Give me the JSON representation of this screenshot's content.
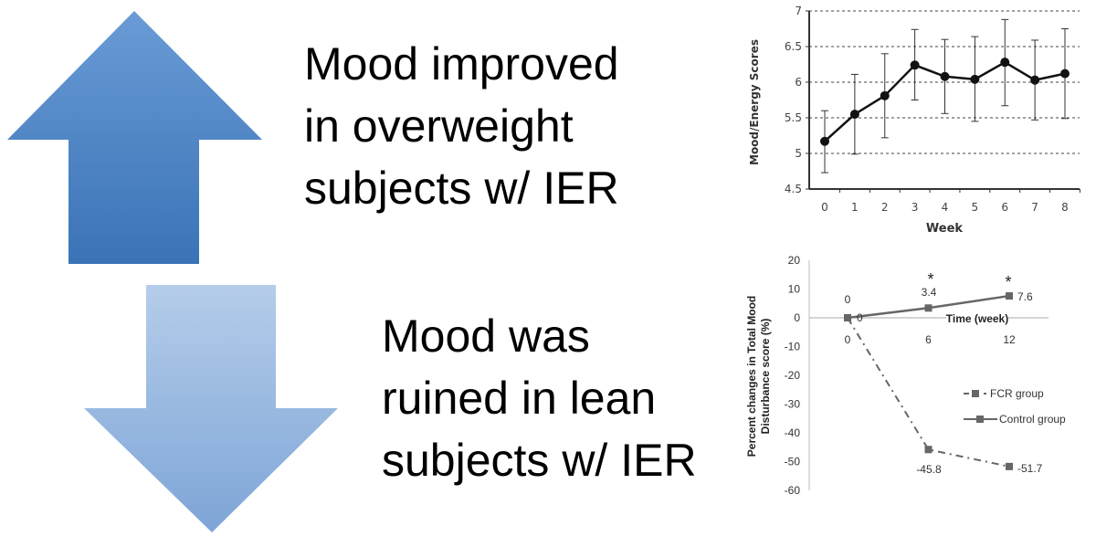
{
  "slide": {
    "text_top": [
      "Mood improved",
      "in overweight",
      "subjects w/ IER"
    ],
    "text_bottom": [
      "Mood was",
      "ruined in lean",
      "subjects w/ IER"
    ],
    "colors": {
      "up_arrow_top": "#6a9bd6",
      "up_arrow_bottom": "#3a73b6",
      "down_arrow_top": "#b5cdea",
      "down_arrow_bottom": "#7ea5d7"
    }
  },
  "chart_data": [
    {
      "type": "line",
      "title": "",
      "xlabel": "Week",
      "ylabel": "Mood/Energy Scores",
      "x": [
        0,
        1,
        2,
        3,
        4,
        5,
        6,
        7,
        8
      ],
      "series": [
        {
          "name": "Mood/Energy",
          "values": [
            5.17,
            5.55,
            5.81,
            6.24,
            6.08,
            6.04,
            6.28,
            6.03,
            6.12
          ],
          "err_low": [
            4.73,
            4.99,
            5.22,
            5.75,
            5.56,
            5.45,
            5.67,
            5.47,
            5.49
          ],
          "err_high": [
            5.6,
            6.11,
            6.4,
            6.74,
            6.6,
            6.64,
            6.88,
            6.59,
            6.75
          ]
        }
      ],
      "ylim": [
        4.5,
        7
      ],
      "yticks": [
        "4.5",
        "5",
        "5.5",
        "6",
        "6.5",
        "7"
      ],
      "xticks": [
        "0",
        "1",
        "2",
        "3",
        "4",
        "5",
        "6",
        "7",
        "8"
      ],
      "grid": true
    },
    {
      "type": "line",
      "title": "",
      "xlabel": "Time (week)",
      "ylabel": "Percent changes in Total Mood Disturbance score (%)",
      "x": [
        0,
        6,
        12
      ],
      "xticks": [
        "0",
        "6",
        "12"
      ],
      "yticks": [
        "20",
        "10",
        "0",
        "-10",
        "-20",
        "-30",
        "-40",
        "-50",
        "-60"
      ],
      "ylim": [
        -60,
        20
      ],
      "series": [
        {
          "name": "FCR group",
          "values": [
            0,
            -45.8,
            -51.7
          ],
          "labels": [
            "0",
            "-45.8",
            "-51.7"
          ],
          "style": "dash-dot"
        },
        {
          "name": "Control group",
          "values": [
            0,
            3.4,
            7.6
          ],
          "labels": [
            "0",
            "3.4",
            "7.6"
          ],
          "style": "solid"
        }
      ],
      "annotations": [
        "*",
        "*"
      ],
      "legend": "right"
    }
  ]
}
